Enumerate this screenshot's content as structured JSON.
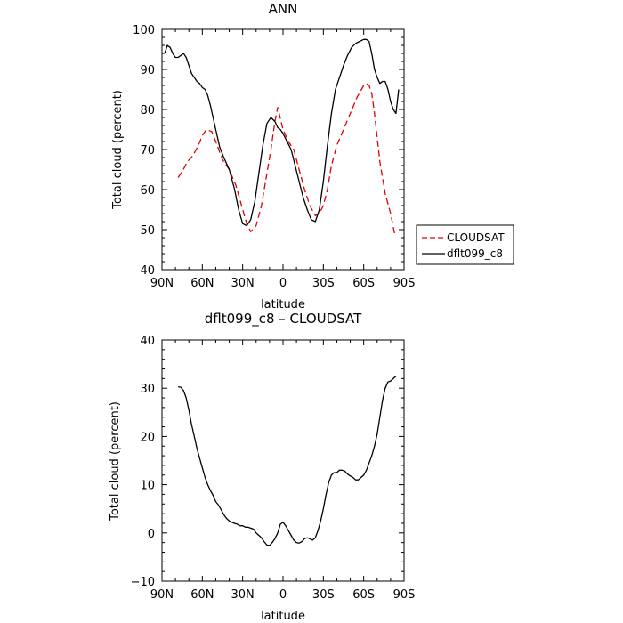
{
  "chart_data": [
    {
      "type": "line",
      "title": "ANN",
      "xlabel": "latitude",
      "ylabel": "Total cloud (percent)",
      "xlim": [
        90,
        -90
      ],
      "ylim": [
        40,
        100
      ],
      "x_ticks": [
        90,
        60,
        30,
        0,
        -30,
        -60,
        -90
      ],
      "x_tick_labels": [
        "90N",
        "60N",
        "30N",
        "0",
        "30S",
        "60S",
        "90S"
      ],
      "y_ticks": [
        40,
        50,
        60,
        70,
        80,
        90,
        100
      ],
      "y_tick_labels": [
        "40",
        "50",
        "60",
        "70",
        "80",
        "90",
        "100"
      ],
      "legend": {
        "placement": "right",
        "entries": [
          "CLOUDSAT",
          "dflt099_c8"
        ]
      },
      "series": [
        {
          "name": "CLOUDSAT",
          "color": "#e00000",
          "dash": "dashed",
          "x": [
            78,
            75,
            71,
            67,
            63,
            60,
            57,
            53,
            50,
            45,
            40,
            35,
            30,
            27,
            24,
            20,
            16,
            12,
            9,
            6,
            4,
            0,
            -4,
            -8,
            -12,
            -16,
            -20,
            -24,
            -27,
            -30,
            -33,
            -36,
            -40,
            -45,
            -50,
            -55,
            -60,
            -62,
            -64,
            -66,
            -68,
            -72,
            -76,
            -80,
            -83
          ],
          "y": [
            63,
            64.5,
            67,
            68.5,
            71,
            73.5,
            75,
            74.5,
            72,
            67.5,
            65,
            61,
            55,
            51.5,
            49.5,
            51,
            56,
            64,
            70,
            77,
            80.5,
            75,
            72,
            70,
            65,
            60,
            56,
            53.5,
            54,
            56,
            60,
            66,
            71,
            75,
            79,
            83,
            86,
            86.5,
            86,
            84,
            79,
            67,
            59,
            54,
            49
          ]
        },
        {
          "name": "dflt099_c8",
          "color": "#000000",
          "dash": "solid",
          "x": [
            88,
            86,
            84,
            82,
            80,
            78,
            76,
            74,
            72,
            70,
            68,
            66,
            64,
            62,
            60,
            58,
            56,
            54,
            52,
            50,
            47,
            44,
            40,
            36,
            33,
            30,
            27,
            24,
            21,
            18,
            15,
            12,
            9,
            6,
            4,
            2,
            0,
            -3,
            -6,
            -9,
            -12,
            -15,
            -18,
            -21,
            -24,
            -27,
            -30,
            -33,
            -36,
            -39,
            -42,
            -45,
            -48,
            -51,
            -54,
            -57,
            -60,
            -62,
            -64,
            -66,
            -68,
            -70,
            -72,
            -74,
            -76,
            -78,
            -80,
            -82,
            -84,
            -86
          ],
          "y": [
            94,
            96,
            95.5,
            94,
            93,
            93,
            93.5,
            94,
            93,
            91,
            89,
            88,
            87,
            86.5,
            85.5,
            85,
            83.5,
            81,
            78,
            75,
            70.5,
            68,
            65,
            60,
            55,
            51.5,
            51,
            52.5,
            57,
            64,
            71,
            76.5,
            78,
            77,
            75.5,
            75,
            74,
            72,
            70,
            66,
            62,
            58,
            55,
            52.5,
            52,
            55,
            62,
            71,
            79,
            85,
            88,
            91,
            93.5,
            95.5,
            96.5,
            97,
            97.5,
            97.5,
            97,
            94,
            90,
            88,
            86.5,
            87,
            87,
            85,
            82,
            80,
            79,
            85
          ]
        }
      ]
    },
    {
      "type": "line",
      "title": "dflt099_c8 – CLOUDSAT",
      "xlabel": "latitude",
      "ylabel": "Total cloud (percent)",
      "xlim": [
        90,
        -90
      ],
      "ylim": [
        -10,
        40
      ],
      "x_ticks": [
        90,
        60,
        30,
        0,
        -30,
        -60,
        -90
      ],
      "x_tick_labels": [
        "90N",
        "60N",
        "30N",
        "0",
        "30S",
        "60S",
        "90S"
      ],
      "y_ticks": [
        -10,
        0,
        10,
        20,
        30,
        40
      ],
      "y_tick_labels": [
        "−10",
        "0",
        "10",
        "20",
        "30",
        "40"
      ],
      "series": [
        {
          "color": "#000000",
          "dash": "solid",
          "x": [
            78,
            76,
            74,
            72,
            70,
            68,
            66,
            64,
            62,
            60,
            58,
            56,
            54,
            52,
            50,
            48,
            46,
            44,
            42,
            40,
            38,
            36,
            34,
            32,
            30,
            28,
            26,
            24,
            22,
            20,
            18,
            16,
            14,
            12,
            10,
            8,
            6,
            4,
            2,
            0,
            -2,
            -4,
            -6,
            -8,
            -10,
            -12,
            -14,
            -16,
            -18,
            -20,
            -22,
            -24,
            -26,
            -28,
            -30,
            -32,
            -34,
            -36,
            -38,
            -40,
            -42,
            -44,
            -46,
            -48,
            -50,
            -52,
            -54,
            -56,
            -58,
            -60,
            -62,
            -64,
            -66,
            -68,
            -70,
            -72,
            -74,
            -76,
            -78,
            -80,
            -82,
            -84
          ],
          "y": [
            30.3,
            30.2,
            29.5,
            28,
            25.5,
            22.5,
            20,
            17.5,
            15.5,
            13.5,
            11.5,
            10,
            8.8,
            7.8,
            6.5,
            5.8,
            4.8,
            3.8,
            3,
            2.5,
            2.2,
            2,
            1.8,
            1.5,
            1.5,
            1.2,
            1.2,
            1,
            0.8,
            0,
            -0.5,
            -1,
            -1.8,
            -2.5,
            -2.6,
            -2,
            -1.2,
            0,
            1.8,
            2.2,
            1.5,
            0.5,
            -0.5,
            -1.5,
            -2,
            -2.1,
            -1.8,
            -1.2,
            -1,
            -1.2,
            -1.5,
            -1,
            0.5,
            2.5,
            5,
            8,
            10.5,
            12,
            12.5,
            12.5,
            13,
            13,
            12.8,
            12.2,
            11.8,
            11.5,
            11,
            11,
            11.5,
            12,
            13,
            14.5,
            16,
            18,
            20.5,
            24,
            27.5,
            30,
            31.3,
            31.5,
            32,
            32.5
          ]
        }
      ]
    }
  ]
}
